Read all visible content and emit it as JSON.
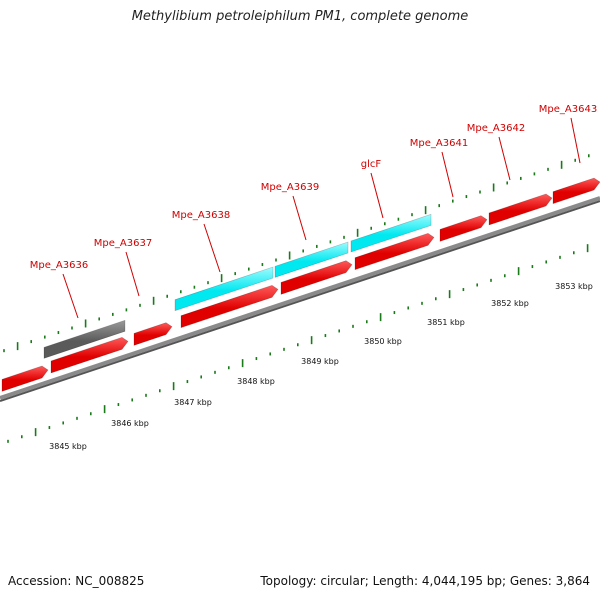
{
  "title": "Methylibium petroleiphilum PM1, complete genome",
  "footer": {
    "accession": "Accession: NC_008825",
    "summary": "Topology: circular; Length: 4,044,195 bp; Genes: 3,864"
  },
  "colors": {
    "cds": "#e00000",
    "rna": "#00e8f0",
    "pseudo": "#5a5a5a",
    "backbone": "#8a8a8a",
    "ticks": "#1a7a1a",
    "label": "#d00000"
  },
  "gene_labels": [
    "Mpe_A3636",
    "Mpe_A3637",
    "Mpe_A3638",
    "Mpe_A3639",
    "glcF",
    "Mpe_A3641",
    "Mpe_A3642",
    "Mpe_A3643"
  ],
  "kbp_labels": [
    "3845 kbp",
    "3846 kbp",
    "3847 kbp",
    "3848 kbp",
    "3849 kbp",
    "3850 kbp",
    "3851 kbp",
    "3852 kbp",
    "3853 kbp"
  ]
}
